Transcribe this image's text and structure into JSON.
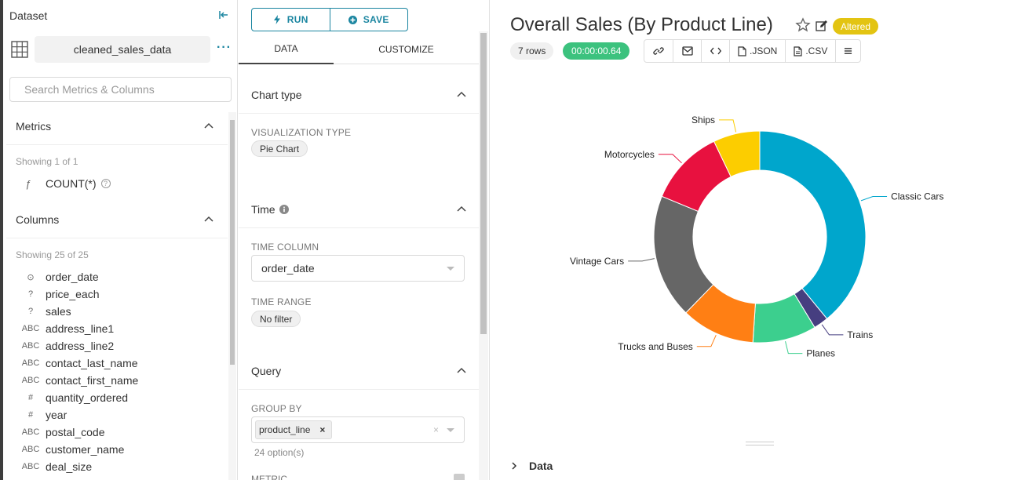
{
  "dataset_panel": {
    "title": "Dataset",
    "dataset_name": "cleaned_sales_data",
    "search_placeholder": "Search Metrics & Columns",
    "metrics_heading": "Metrics",
    "metrics_showing": "Showing 1 of 1",
    "metrics": [
      {
        "type": "ƒ",
        "name": "COUNT(*)"
      }
    ],
    "columns_heading": "Columns",
    "columns_showing": "Showing 25 of 25",
    "columns": [
      {
        "type": "⊙",
        "name": "order_date"
      },
      {
        "type": "?",
        "name": "price_each"
      },
      {
        "type": "?",
        "name": "sales"
      },
      {
        "type": "ABC",
        "name": "address_line1"
      },
      {
        "type": "ABC",
        "name": "address_line2"
      },
      {
        "type": "ABC",
        "name": "contact_last_name"
      },
      {
        "type": "ABC",
        "name": "contact_first_name"
      },
      {
        "type": "#",
        "name": "quantity_ordered"
      },
      {
        "type": "#",
        "name": "year"
      },
      {
        "type": "ABC",
        "name": "postal_code"
      },
      {
        "type": "ABC",
        "name": "customer_name"
      },
      {
        "type": "ABC",
        "name": "deal_size"
      }
    ]
  },
  "control_panel": {
    "run_label": "RUN",
    "save_label": "SAVE",
    "tab_data": "DATA",
    "tab_customize": "CUSTOMIZE",
    "chart_type_heading": "Chart type",
    "viz_type_label": "VISUALIZATION TYPE",
    "viz_type_value": "Pie Chart",
    "time_heading": "Time",
    "time_column_label": "TIME COLUMN",
    "time_column_value": "order_date",
    "time_range_label": "TIME RANGE",
    "time_range_value": "No filter",
    "query_heading": "Query",
    "group_by_label": "GROUP BY",
    "group_by_value": "product_line",
    "group_by_options": "24 option(s)",
    "metric_label": "METRIC"
  },
  "chart_header": {
    "title": "Overall Sales (By Product Line)",
    "status_badge": "Altered",
    "rows": "7 rows",
    "timer": "00:00:00.64",
    "json_label": ".JSON",
    "csv_label": ".CSV"
  },
  "data_section_label": "Data",
  "chart_data": {
    "type": "pie",
    "donut": true,
    "categories": [
      "Classic Cars",
      "Trains",
      "Planes",
      "Trucks and Buses",
      "Vintage Cars",
      "Motorcycles",
      "Ships"
    ],
    "values": [
      3919615.66,
      226243.47,
      975003.57,
      1127789.84,
      1903150.84,
      1166388.34,
      714437.13
    ],
    "colors": [
      "#00A6CC",
      "#463E80",
      "#3CCF8E",
      "#FF7F14",
      "#666666",
      "#E8113F",
      "#FCCD00"
    ]
  },
  "colors": {
    "accent": "#1A85A0",
    "success": "#3CC27E",
    "warning": "#E3C412"
  }
}
